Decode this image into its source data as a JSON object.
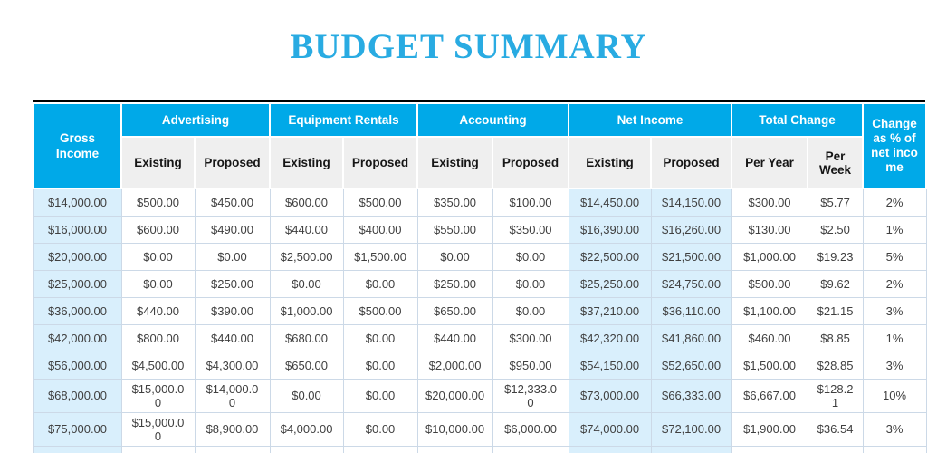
{
  "title": "BUDGET SUMMARY",
  "colors": {
    "accent": "#00a9e8",
    "title_blue": "#29abe2",
    "light_blue": "#d9effc",
    "subheader_gray": "#efefef",
    "grid_border": "#ccd9e7",
    "data_text": "#3f3f3f",
    "top_border": "#000000"
  },
  "table": {
    "gross_income_header": "Gross Income",
    "groups": [
      {
        "label": "Advertising",
        "sub": [
          "Existing",
          "Proposed"
        ]
      },
      {
        "label": "Equipment Rentals",
        "sub": [
          "Existing",
          "Proposed"
        ]
      },
      {
        "label": "Accounting",
        "sub": [
          "Existing",
          "Proposed"
        ]
      },
      {
        "label": "Net Income",
        "sub": [
          "Existing",
          "Proposed"
        ]
      },
      {
        "label": "Total Change",
        "sub": [
          "Per Year",
          "Per Week"
        ]
      }
    ],
    "change_header": "Change as % of net income",
    "highlight_columns": [
      0,
      7,
      8
    ],
    "rows": [
      [
        "$14,000.00",
        "$500.00",
        "$450.00",
        "$600.00",
        "$500.00",
        "$350.00",
        "$100.00",
        "$14,450.00",
        "$14,150.00",
        "$300.00",
        "$5.77",
        "2%"
      ],
      [
        "$16,000.00",
        "$600.00",
        "$490.00",
        "$440.00",
        "$400.00",
        "$550.00",
        "$350.00",
        "$16,390.00",
        "$16,260.00",
        "$130.00",
        "$2.50",
        "1%"
      ],
      [
        "$20,000.00",
        "$0.00",
        "$0.00",
        "$2,500.00",
        "$1,500.00",
        "$0.00",
        "$0.00",
        "$22,500.00",
        "$21,500.00",
        "$1,000.00",
        "$19.23",
        "5%"
      ],
      [
        "$25,000.00",
        "$0.00",
        "$250.00",
        "$0.00",
        "$0.00",
        "$250.00",
        "$0.00",
        "$25,250.00",
        "$24,750.00",
        "$500.00",
        "$9.62",
        "2%"
      ],
      [
        "$36,000.00",
        "$440.00",
        "$390.00",
        "$1,000.00",
        "$500.00",
        "$650.00",
        "$0.00",
        "$37,210.00",
        "$36,110.00",
        "$1,100.00",
        "$21.15",
        "3%"
      ],
      [
        "$42,000.00",
        "$800.00",
        "$440.00",
        "$680.00",
        "$0.00",
        "$440.00",
        "$300.00",
        "$42,320.00",
        "$41,860.00",
        "$460.00",
        "$8.85",
        "1%"
      ],
      [
        "$56,000.00",
        "$4,500.00",
        "$4,300.00",
        "$650.00",
        "$0.00",
        "$2,000.00",
        "$950.00",
        "$54,150.00",
        "$52,650.00",
        "$1,500.00",
        "$28.85",
        "3%"
      ],
      [
        "$68,000.00",
        "$15,000.0\n0",
        "$14,000.0\n0",
        "$0.00",
        "$0.00",
        "$20,000.00",
        "$12,333.0\n0",
        "$73,000.00",
        "$66,333.00",
        "$6,667.00",
        "$128.2\n1",
        "10%"
      ],
      [
        "$75,000.00",
        "$15,000.0\n0",
        "$8,900.00",
        "$4,000.00",
        "$0.00",
        "$10,000.00",
        "$6,000.00",
        "$74,000.00",
        "$72,100.00",
        "$1,900.00",
        "$36.54",
        "3%"
      ]
    ],
    "partial_row_visible": true
  }
}
